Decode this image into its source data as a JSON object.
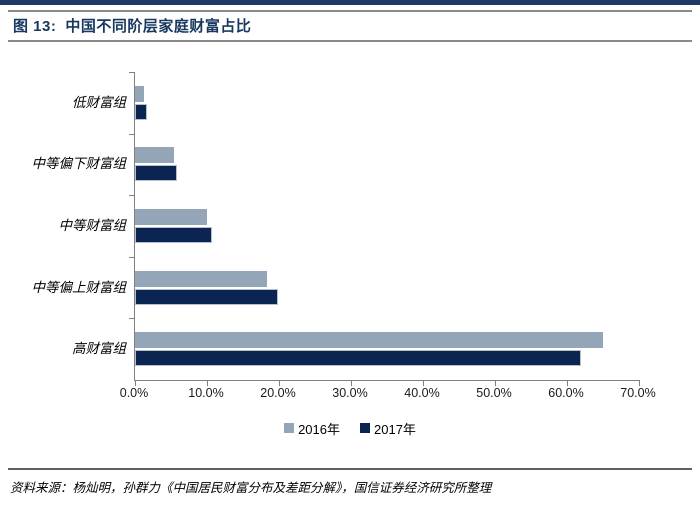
{
  "header": {
    "figure_label": "图 13:",
    "title": "中国不同阶层家庭财富占比"
  },
  "chart_data": {
    "type": "bar",
    "orientation": "horizontal",
    "title": "中国不同阶层家庭财富占比",
    "categories": [
      "低财富组",
      "中等偏下财富组",
      "中等财富组",
      "中等偏上财富组",
      "高财富组"
    ],
    "series": [
      {
        "name": "2016年",
        "color": "#95A5B8",
        "values": [
          1.2,
          5.4,
          10.0,
          18.4,
          65.0
        ]
      },
      {
        "name": "2017年",
        "color": "#0C2452",
        "values": [
          1.6,
          5.9,
          10.7,
          19.9,
          62.0
        ]
      }
    ],
    "value_unit": "%",
    "x_ticks": [
      "0.0%",
      "10.0%",
      "20.0%",
      "30.0%",
      "40.0%",
      "50.0%",
      "60.0%",
      "70.0%"
    ],
    "xlim": [
      0,
      70
    ],
    "xlabel": "",
    "ylabel": "",
    "grid": false,
    "legend_position": "bottom-center"
  },
  "footer": {
    "source": "资料来源：杨灿明，孙群力《中国居民财富分布及差距分解》，国信证券经济研究所整理"
  },
  "colors": {
    "accent_bar": "#1F3864",
    "title_text": "#17375E",
    "series_2016": "#95A5B8",
    "series_2017": "#0C2452",
    "axis": "#808080"
  }
}
